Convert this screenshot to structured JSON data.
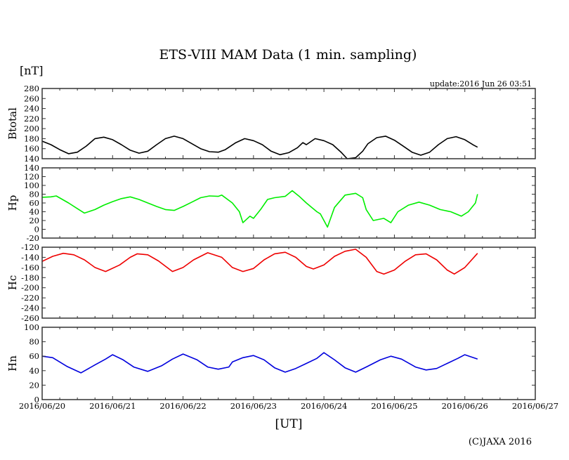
{
  "chart_data": {
    "type": "line",
    "title": "ETS-VIII MAM Data (1 min. sampling)",
    "unit_label": "[nT]",
    "update_text": "update:2016 Jun 26 03:51",
    "xlabel": "[UT]",
    "copyright": "(C)JAXA 2016",
    "x_unit": "days since 2016/06/20 00:00 UT",
    "xlim": [
      0,
      7
    ],
    "x_minor_tick_step": 0.25,
    "x_tick_labels": [
      "2016/06/20",
      "2016/06/21",
      "2016/06/22",
      "2016/06/23",
      "2016/06/24",
      "2016/06/25",
      "2016/06/26",
      "2016/06/27"
    ],
    "grid": false,
    "panels": [
      {
        "name": "Btotal",
        "ylabel": "Btotal",
        "color": "#000000",
        "ylim": [
          140,
          280
        ],
        "yticks": [
          140,
          160,
          180,
          200,
          220,
          240,
          260,
          280
        ],
        "points": [
          [
            0,
            175
          ],
          [
            0.125,
            168
          ],
          [
            0.25,
            158
          ],
          [
            0.375,
            150
          ],
          [
            0.5,
            153
          ],
          [
            0.625,
            165
          ],
          [
            0.75,
            180
          ],
          [
            0.875,
            183
          ],
          [
            1.0,
            178
          ],
          [
            1.125,
            168
          ],
          [
            1.25,
            157
          ],
          [
            1.375,
            151
          ],
          [
            1.5,
            155
          ],
          [
            1.625,
            168
          ],
          [
            1.75,
            180
          ],
          [
            1.875,
            185
          ],
          [
            2.0,
            180
          ],
          [
            2.125,
            170
          ],
          [
            2.25,
            160
          ],
          [
            2.375,
            154
          ],
          [
            2.5,
            153
          ],
          [
            2.6,
            158
          ],
          [
            2.75,
            172
          ],
          [
            2.875,
            180
          ],
          [
            3.0,
            176
          ],
          [
            3.125,
            168
          ],
          [
            3.25,
            155
          ],
          [
            3.375,
            148
          ],
          [
            3.5,
            152
          ],
          [
            3.625,
            162
          ],
          [
            3.7,
            172
          ],
          [
            3.75,
            168
          ],
          [
            3.875,
            180
          ],
          [
            4.0,
            176
          ],
          [
            4.125,
            168
          ],
          [
            4.25,
            152
          ],
          [
            4.33,
            140
          ],
          [
            4.45,
            142
          ],
          [
            4.55,
            155
          ],
          [
            4.625,
            170
          ],
          [
            4.75,
            182
          ],
          [
            4.875,
            185
          ],
          [
            5.0,
            177
          ],
          [
            5.125,
            165
          ],
          [
            5.25,
            153
          ],
          [
            5.375,
            147
          ],
          [
            5.5,
            153
          ],
          [
            5.625,
            168
          ],
          [
            5.75,
            180
          ],
          [
            5.875,
            184
          ],
          [
            6.0,
            178
          ],
          [
            6.125,
            167
          ],
          [
            6.18,
            163
          ]
        ]
      },
      {
        "name": "Hp",
        "ylabel": "Hp",
        "color": "#00ee00",
        "ylim": [
          -20,
          140
        ],
        "yticks": [
          -20,
          0,
          20,
          40,
          60,
          80,
          100,
          120,
          140
        ],
        "points": [
          [
            0,
            73
          ],
          [
            0.125,
            74
          ],
          [
            0.2,
            76
          ],
          [
            0.375,
            60
          ],
          [
            0.5,
            47
          ],
          [
            0.6,
            37
          ],
          [
            0.75,
            45
          ],
          [
            0.875,
            55
          ],
          [
            1.0,
            63
          ],
          [
            1.125,
            70
          ],
          [
            1.25,
            74
          ],
          [
            1.375,
            68
          ],
          [
            1.5,
            60
          ],
          [
            1.625,
            52
          ],
          [
            1.75,
            45
          ],
          [
            1.875,
            43
          ],
          [
            2.0,
            52
          ],
          [
            2.125,
            62
          ],
          [
            2.25,
            72
          ],
          [
            2.375,
            76
          ],
          [
            2.5,
            75
          ],
          [
            2.55,
            78
          ],
          [
            2.7,
            60
          ],
          [
            2.8,
            40
          ],
          [
            2.85,
            15
          ],
          [
            2.95,
            30
          ],
          [
            3.0,
            25
          ],
          [
            3.1,
            45
          ],
          [
            3.2,
            68
          ],
          [
            3.3,
            72
          ],
          [
            3.45,
            75
          ],
          [
            3.55,
            88
          ],
          [
            3.65,
            75
          ],
          [
            3.75,
            60
          ],
          [
            3.9,
            40
          ],
          [
            3.95,
            35
          ],
          [
            4.05,
            5
          ],
          [
            4.15,
            50
          ],
          [
            4.3,
            78
          ],
          [
            4.45,
            82
          ],
          [
            4.55,
            72
          ],
          [
            4.6,
            45
          ],
          [
            4.7,
            20
          ],
          [
            4.85,
            25
          ],
          [
            4.95,
            15
          ],
          [
            5.05,
            40
          ],
          [
            5.2,
            55
          ],
          [
            5.35,
            62
          ],
          [
            5.5,
            55
          ],
          [
            5.65,
            45
          ],
          [
            5.8,
            40
          ],
          [
            5.95,
            30
          ],
          [
            6.05,
            40
          ],
          [
            6.15,
            60
          ],
          [
            6.18,
            80
          ]
        ]
      },
      {
        "name": "Hc",
        "ylabel": "Hc",
        "color": "#ee0000",
        "ylim": [
          -260,
          -120
        ],
        "yticks": [
          -260,
          -240,
          -220,
          -200,
          -180,
          -160,
          -140,
          -120
        ],
        "points": [
          [
            0,
            -148
          ],
          [
            0.15,
            -138
          ],
          [
            0.3,
            -132
          ],
          [
            0.45,
            -135
          ],
          [
            0.6,
            -145
          ],
          [
            0.75,
            -160
          ],
          [
            0.9,
            -168
          ],
          [
            1.1,
            -155
          ],
          [
            1.25,
            -140
          ],
          [
            1.35,
            -133
          ],
          [
            1.5,
            -135
          ],
          [
            1.65,
            -147
          ],
          [
            1.85,
            -168
          ],
          [
            2.0,
            -160
          ],
          [
            2.15,
            -145
          ],
          [
            2.35,
            -131
          ],
          [
            2.55,
            -140
          ],
          [
            2.7,
            -160
          ],
          [
            2.85,
            -168
          ],
          [
            3.0,
            -162
          ],
          [
            3.15,
            -145
          ],
          [
            3.3,
            -133
          ],
          [
            3.45,
            -130
          ],
          [
            3.6,
            -140
          ],
          [
            3.75,
            -158
          ],
          [
            3.85,
            -163
          ],
          [
            4.0,
            -155
          ],
          [
            4.15,
            -138
          ],
          [
            4.3,
            -128
          ],
          [
            4.45,
            -124
          ],
          [
            4.6,
            -140
          ],
          [
            4.75,
            -168
          ],
          [
            4.85,
            -173
          ],
          [
            5.0,
            -165
          ],
          [
            5.15,
            -148
          ],
          [
            5.3,
            -135
          ],
          [
            5.45,
            -133
          ],
          [
            5.6,
            -145
          ],
          [
            5.75,
            -165
          ],
          [
            5.85,
            -173
          ],
          [
            6.0,
            -160
          ],
          [
            6.18,
            -132
          ]
        ]
      },
      {
        "name": "Hn",
        "ylabel": "Hn",
        "color": "#0000dd",
        "ylim": [
          0,
          100
        ],
        "yticks": [
          0,
          20,
          40,
          60,
          80,
          100
        ],
        "points": [
          [
            0,
            60
          ],
          [
            0.15,
            58
          ],
          [
            0.35,
            46
          ],
          [
            0.55,
            37
          ],
          [
            0.75,
            48
          ],
          [
            0.9,
            56
          ],
          [
            1.0,
            62
          ],
          [
            1.15,
            55
          ],
          [
            1.3,
            45
          ],
          [
            1.5,
            39
          ],
          [
            1.7,
            47
          ],
          [
            1.85,
            56
          ],
          [
            2.0,
            63
          ],
          [
            2.2,
            55
          ],
          [
            2.35,
            45
          ],
          [
            2.5,
            42
          ],
          [
            2.65,
            45
          ],
          [
            2.7,
            52
          ],
          [
            2.85,
            58
          ],
          [
            3.0,
            61
          ],
          [
            3.15,
            55
          ],
          [
            3.3,
            44
          ],
          [
            3.45,
            38
          ],
          [
            3.6,
            43
          ],
          [
            3.75,
            50
          ],
          [
            3.9,
            57
          ],
          [
            4.0,
            65
          ],
          [
            4.15,
            55
          ],
          [
            4.3,
            44
          ],
          [
            4.45,
            38
          ],
          [
            4.6,
            45
          ],
          [
            4.8,
            55
          ],
          [
            4.95,
            60
          ],
          [
            5.1,
            56
          ],
          [
            5.3,
            45
          ],
          [
            5.45,
            41
          ],
          [
            5.6,
            43
          ],
          [
            5.75,
            50
          ],
          [
            5.9,
            57
          ],
          [
            6.0,
            62
          ],
          [
            6.18,
            56
          ]
        ]
      }
    ]
  }
}
